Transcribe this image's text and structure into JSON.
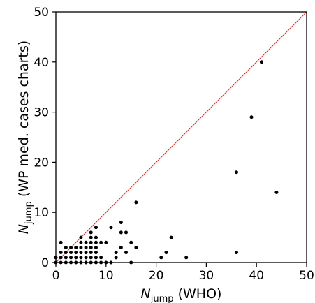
{
  "chart_data": {
    "type": "scatter",
    "title": "",
    "xlabel": {
      "symbol": "N",
      "subscript": "jump",
      "rest": " (WHO)"
    },
    "ylabel": {
      "symbol": "N",
      "subscript": "jump",
      "rest": " (WP med. cases charts)"
    },
    "xlim": [
      0,
      50
    ],
    "ylim": [
      0,
      50
    ],
    "xticks": [
      0,
      10,
      20,
      30,
      40,
      50
    ],
    "yticks": [
      0,
      10,
      20,
      30,
      40,
      50
    ],
    "grid": false,
    "legend": "none",
    "reference_line": {
      "type": "identity",
      "from": [
        0,
        0
      ],
      "to": [
        50,
        50
      ],
      "color": "#e03030"
    },
    "marker_color": "#000000",
    "points": [
      [
        0,
        0
      ],
      [
        0,
        1
      ],
      [
        1,
        0
      ],
      [
        1,
        1
      ],
      [
        1,
        2
      ],
      [
        1,
        4
      ],
      [
        2,
        0
      ],
      [
        2,
        1
      ],
      [
        2,
        2
      ],
      [
        2,
        3
      ],
      [
        3,
        0
      ],
      [
        3,
        1
      ],
      [
        3,
        2
      ],
      [
        3,
        3
      ],
      [
        4,
        0
      ],
      [
        4,
        1
      ],
      [
        4,
        2
      ],
      [
        4,
        3
      ],
      [
        5,
        0
      ],
      [
        5,
        1
      ],
      [
        5,
        2
      ],
      [
        5,
        3
      ],
      [
        5,
        4
      ],
      [
        5,
        5
      ],
      [
        6,
        0
      ],
      [
        6,
        1
      ],
      [
        6,
        2
      ],
      [
        6,
        3
      ],
      [
        6,
        4
      ],
      [
        7,
        0
      ],
      [
        7,
        1
      ],
      [
        7,
        2
      ],
      [
        7,
        3
      ],
      [
        7,
        4
      ],
      [
        7,
        5
      ],
      [
        7,
        6
      ],
      [
        8,
        0
      ],
      [
        8,
        1
      ],
      [
        8,
        2
      ],
      [
        8,
        3
      ],
      [
        8,
        4
      ],
      [
        8,
        5
      ],
      [
        8,
        7
      ],
      [
        9,
        0
      ],
      [
        9,
        1
      ],
      [
        9,
        4
      ],
      [
        10,
        0
      ],
      [
        10,
        4
      ],
      [
        11,
        0
      ],
      [
        11,
        7
      ],
      [
        12,
        1
      ],
      [
        12,
        2
      ],
      [
        13,
        3
      ],
      [
        13,
        6
      ],
      [
        13,
        8
      ],
      [
        14,
        2
      ],
      [
        14,
        6
      ],
      [
        15,
        0
      ],
      [
        15,
        4
      ],
      [
        16,
        3
      ],
      [
        16,
        12
      ],
      [
        21,
        1
      ],
      [
        22,
        2
      ],
      [
        23,
        5
      ],
      [
        26,
        1
      ],
      [
        36,
        2
      ],
      [
        36,
        18
      ],
      [
        39,
        29
      ],
      [
        41,
        40
      ],
      [
        44,
        14
      ]
    ]
  }
}
